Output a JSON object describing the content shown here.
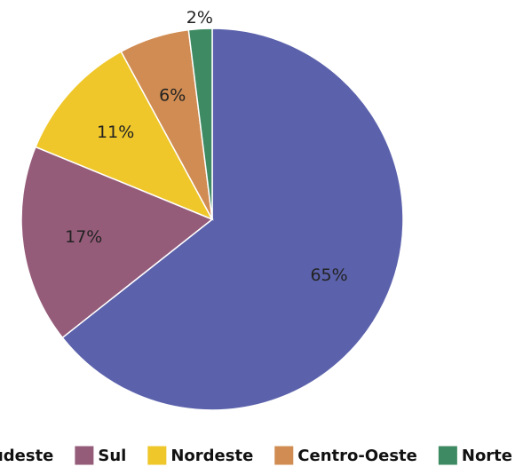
{
  "chart_data": {
    "type": "pie",
    "categories": [
      "Sudeste",
      "Sul",
      "Nordeste",
      "Centro-Oeste",
      "Norte"
    ],
    "values": [
      65,
      17,
      11,
      6,
      2
    ],
    "value_labels": [
      "65%",
      "17%",
      "11%",
      "6%",
      "2%"
    ],
    "colors": [
      "#5b62ab",
      "#955c7a",
      "#efc72a",
      "#d08c52",
      "#3e8a62"
    ],
    "legend": "bottom"
  }
}
